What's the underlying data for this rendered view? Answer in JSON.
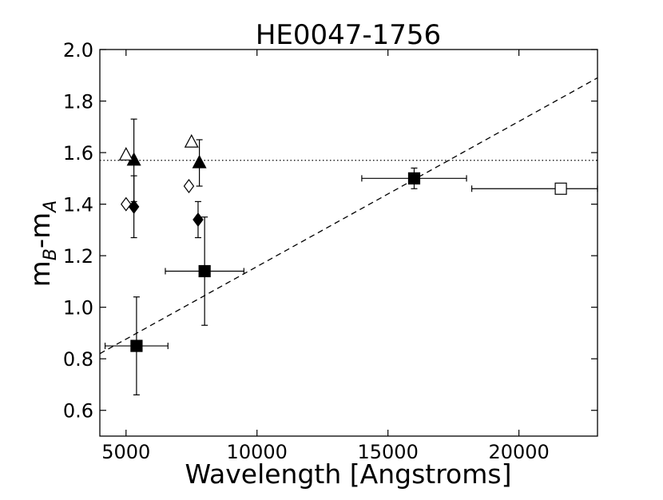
{
  "chart_data": {
    "type": "scatter",
    "title": "HE0047-1756",
    "xlabel": "Wavelength [Angstroms]",
    "ylabel_main": "m",
    "ylabel_sub1": "B",
    "ylabel_mid": "-m",
    "ylabel_sub2": "A",
    "xlim": [
      4000,
      23000
    ],
    "ylim": [
      0.5,
      2.0
    ],
    "xticks": [
      5000,
      10000,
      15000,
      20000
    ],
    "xtick_labels": [
      "5000",
      "10000",
      "15000",
      "20000"
    ],
    "yticks": [
      0.6,
      0.8,
      1.0,
      1.2,
      1.4,
      1.6,
      1.8,
      2.0
    ],
    "ytick_labels": [
      "0.6",
      "0.8",
      "1.0",
      "1.2",
      "1.4",
      "1.6",
      "1.8",
      "2.0"
    ],
    "grid": false,
    "series": [
      {
        "marker": "square",
        "filled": true,
        "points": [
          {
            "x": 5400,
            "y": 0.85,
            "xerr": [
              1200,
              1200
            ],
            "yerr": [
              0.19,
              0.19
            ]
          },
          {
            "x": 8000,
            "y": 1.14,
            "xerr": [
              1500,
              1500
            ],
            "yerr": [
              0.21,
              0.21
            ]
          },
          {
            "x": 16000,
            "y": 1.5,
            "xerr": [
              2000,
              2000
            ],
            "yerr": [
              0.04,
              0.04
            ]
          }
        ]
      },
      {
        "marker": "square",
        "filled": false,
        "points": [
          {
            "x": 21600,
            "y": 1.46,
            "xerr": [
              3400,
              1400
            ],
            "yerr": [
              0,
              0
            ]
          }
        ]
      },
      {
        "marker": "triangle",
        "filled": true,
        "points": [
          {
            "x": 5300,
            "y": 1.57,
            "xerr": [
              0,
              0
            ],
            "yerr": [
              0.16,
              0.16
            ]
          },
          {
            "x": 7800,
            "y": 1.56,
            "xerr": [
              0,
              0
            ],
            "yerr": [
              0.09,
              0.09
            ]
          }
        ]
      },
      {
        "marker": "triangle",
        "filled": false,
        "points": [
          {
            "x": 5000,
            "y": 1.59
          },
          {
            "x": 7500,
            "y": 1.64
          }
        ]
      },
      {
        "marker": "diamond",
        "filled": true,
        "points": [
          {
            "x": 5300,
            "y": 1.39,
            "xerr": [
              0,
              0
            ],
            "yerr": [
              0.12,
              0.12
            ]
          },
          {
            "x": 7750,
            "y": 1.34,
            "xerr": [
              0,
              0
            ],
            "yerr": [
              0.07,
              0.07
            ]
          }
        ]
      },
      {
        "marker": "diamond",
        "filled": false,
        "points": [
          {
            "x": 5000,
            "y": 1.4
          },
          {
            "x": 7400,
            "y": 1.47
          }
        ]
      }
    ],
    "lines": [
      {
        "style": "dashed",
        "x": [
          4000,
          23000
        ],
        "y": [
          0.82,
          1.89
        ]
      },
      {
        "style": "dotted",
        "x": [
          4000,
          23000
        ],
        "y": [
          1.57,
          1.57
        ]
      }
    ]
  }
}
